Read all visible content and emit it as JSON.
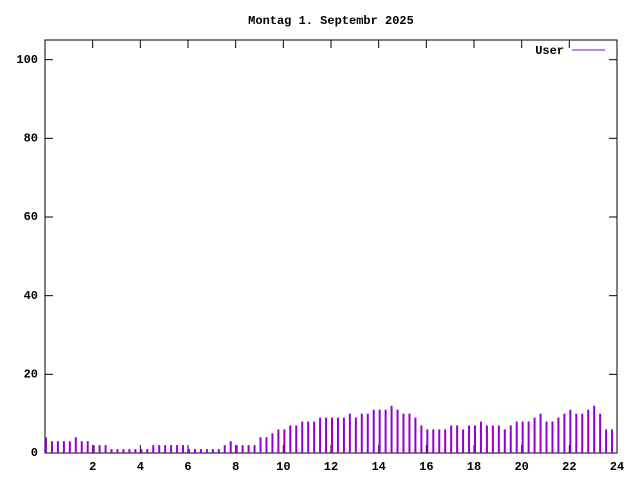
{
  "chart_data": {
    "type": "impulses",
    "title": "Montag 1. Septembr 2025",
    "x": [
      0,
      0.25,
      0.5,
      0.75,
      1,
      1.25,
      1.5,
      1.75,
      2,
      2.25,
      2.5,
      2.75,
      3,
      3.25,
      3.5,
      3.75,
      4,
      4.25,
      4.5,
      4.75,
      5,
      5.25,
      5.5,
      5.75,
      6,
      6.25,
      6.5,
      6.75,
      7,
      7.25,
      7.5,
      7.75,
      8,
      8.25,
      8.5,
      8.75,
      9,
      9.25,
      9.5,
      9.75,
      10,
      10.25,
      10.5,
      10.75,
      11,
      11.25,
      11.5,
      11.75,
      12,
      12.25,
      12.5,
      12.75,
      13,
      13.25,
      13.5,
      13.75,
      14,
      14.25,
      14.5,
      14.75,
      15,
      15.25,
      15.5,
      15.75,
      16,
      16.25,
      16.5,
      16.75,
      17,
      17.25,
      17.5,
      17.75,
      18,
      18.25,
      18.5,
      18.75,
      19,
      19.25,
      19.5,
      19.75,
      20,
      20.25,
      20.5,
      20.75,
      21,
      21.25,
      21.5,
      21.75,
      22,
      22.25,
      22.5,
      22.75,
      23,
      23.25,
      23.5,
      23.75
    ],
    "series": [
      {
        "name": "User",
        "color": "#9400d3",
        "values": [
          4,
          3,
          3,
          3,
          3,
          4,
          3,
          3,
          2,
          2,
          2,
          1,
          1,
          1,
          1,
          1,
          1,
          1,
          2,
          2,
          2,
          2,
          2,
          2,
          1,
          1,
          1,
          1,
          1,
          1,
          2,
          3,
          2,
          2,
          2,
          2,
          4,
          4,
          5,
          6,
          6,
          7,
          7,
          8,
          8,
          8,
          9,
          9,
          9,
          9,
          9,
          10,
          9,
          10,
          10,
          11,
          11,
          11,
          12,
          11,
          10,
          10,
          9,
          7,
          6,
          6,
          6,
          6,
          7,
          7,
          6,
          7,
          7,
          8,
          7,
          7,
          7,
          6,
          7,
          8,
          8,
          8,
          9,
          10,
          8,
          8,
          9,
          10,
          11,
          10,
          10,
          11,
          12,
          10,
          6,
          6
        ]
      }
    ],
    "xlim": [
      0,
      24
    ],
    "ylim": [
      0,
      105
    ],
    "xticks": [
      2,
      4,
      6,
      8,
      10,
      12,
      14,
      16,
      18,
      20,
      22,
      24
    ],
    "yticks": [
      0,
      20,
      40,
      60,
      80,
      100
    ]
  }
}
